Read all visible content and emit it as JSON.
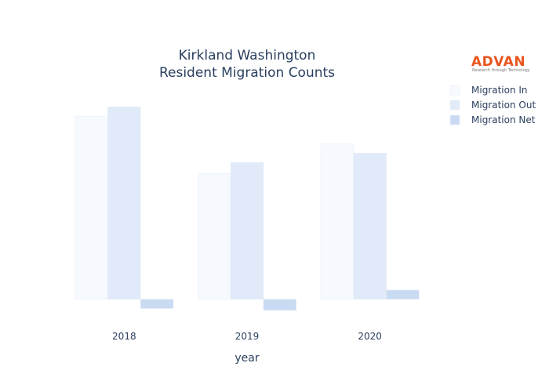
{
  "chart_data": {
    "type": "bar",
    "title_lines": [
      "Kirkland Washington",
      "Resident Migration Counts"
    ],
    "xlabel": "year",
    "ylabel": "",
    "categories": [
      "2018",
      "2019",
      "2020"
    ],
    "series": [
      {
        "name": "Migration In",
        "values": [
          4950,
          3400,
          4200
        ],
        "color": "#f6f9fe"
      },
      {
        "name": "Migration Out",
        "values": [
          5200,
          3700,
          3950
        ],
        "color": "#e0eaf8"
      },
      {
        "name": "Migration Net",
        "values": [
          -250,
          -300,
          250
        ],
        "color": "#c9dbf2"
      }
    ],
    "ylim": [
      -600,
      5800
    ],
    "grid": false,
    "legend_position": "top-right"
  },
  "logo": {
    "name": "ADVAN",
    "tagline": "Research through Technology"
  }
}
